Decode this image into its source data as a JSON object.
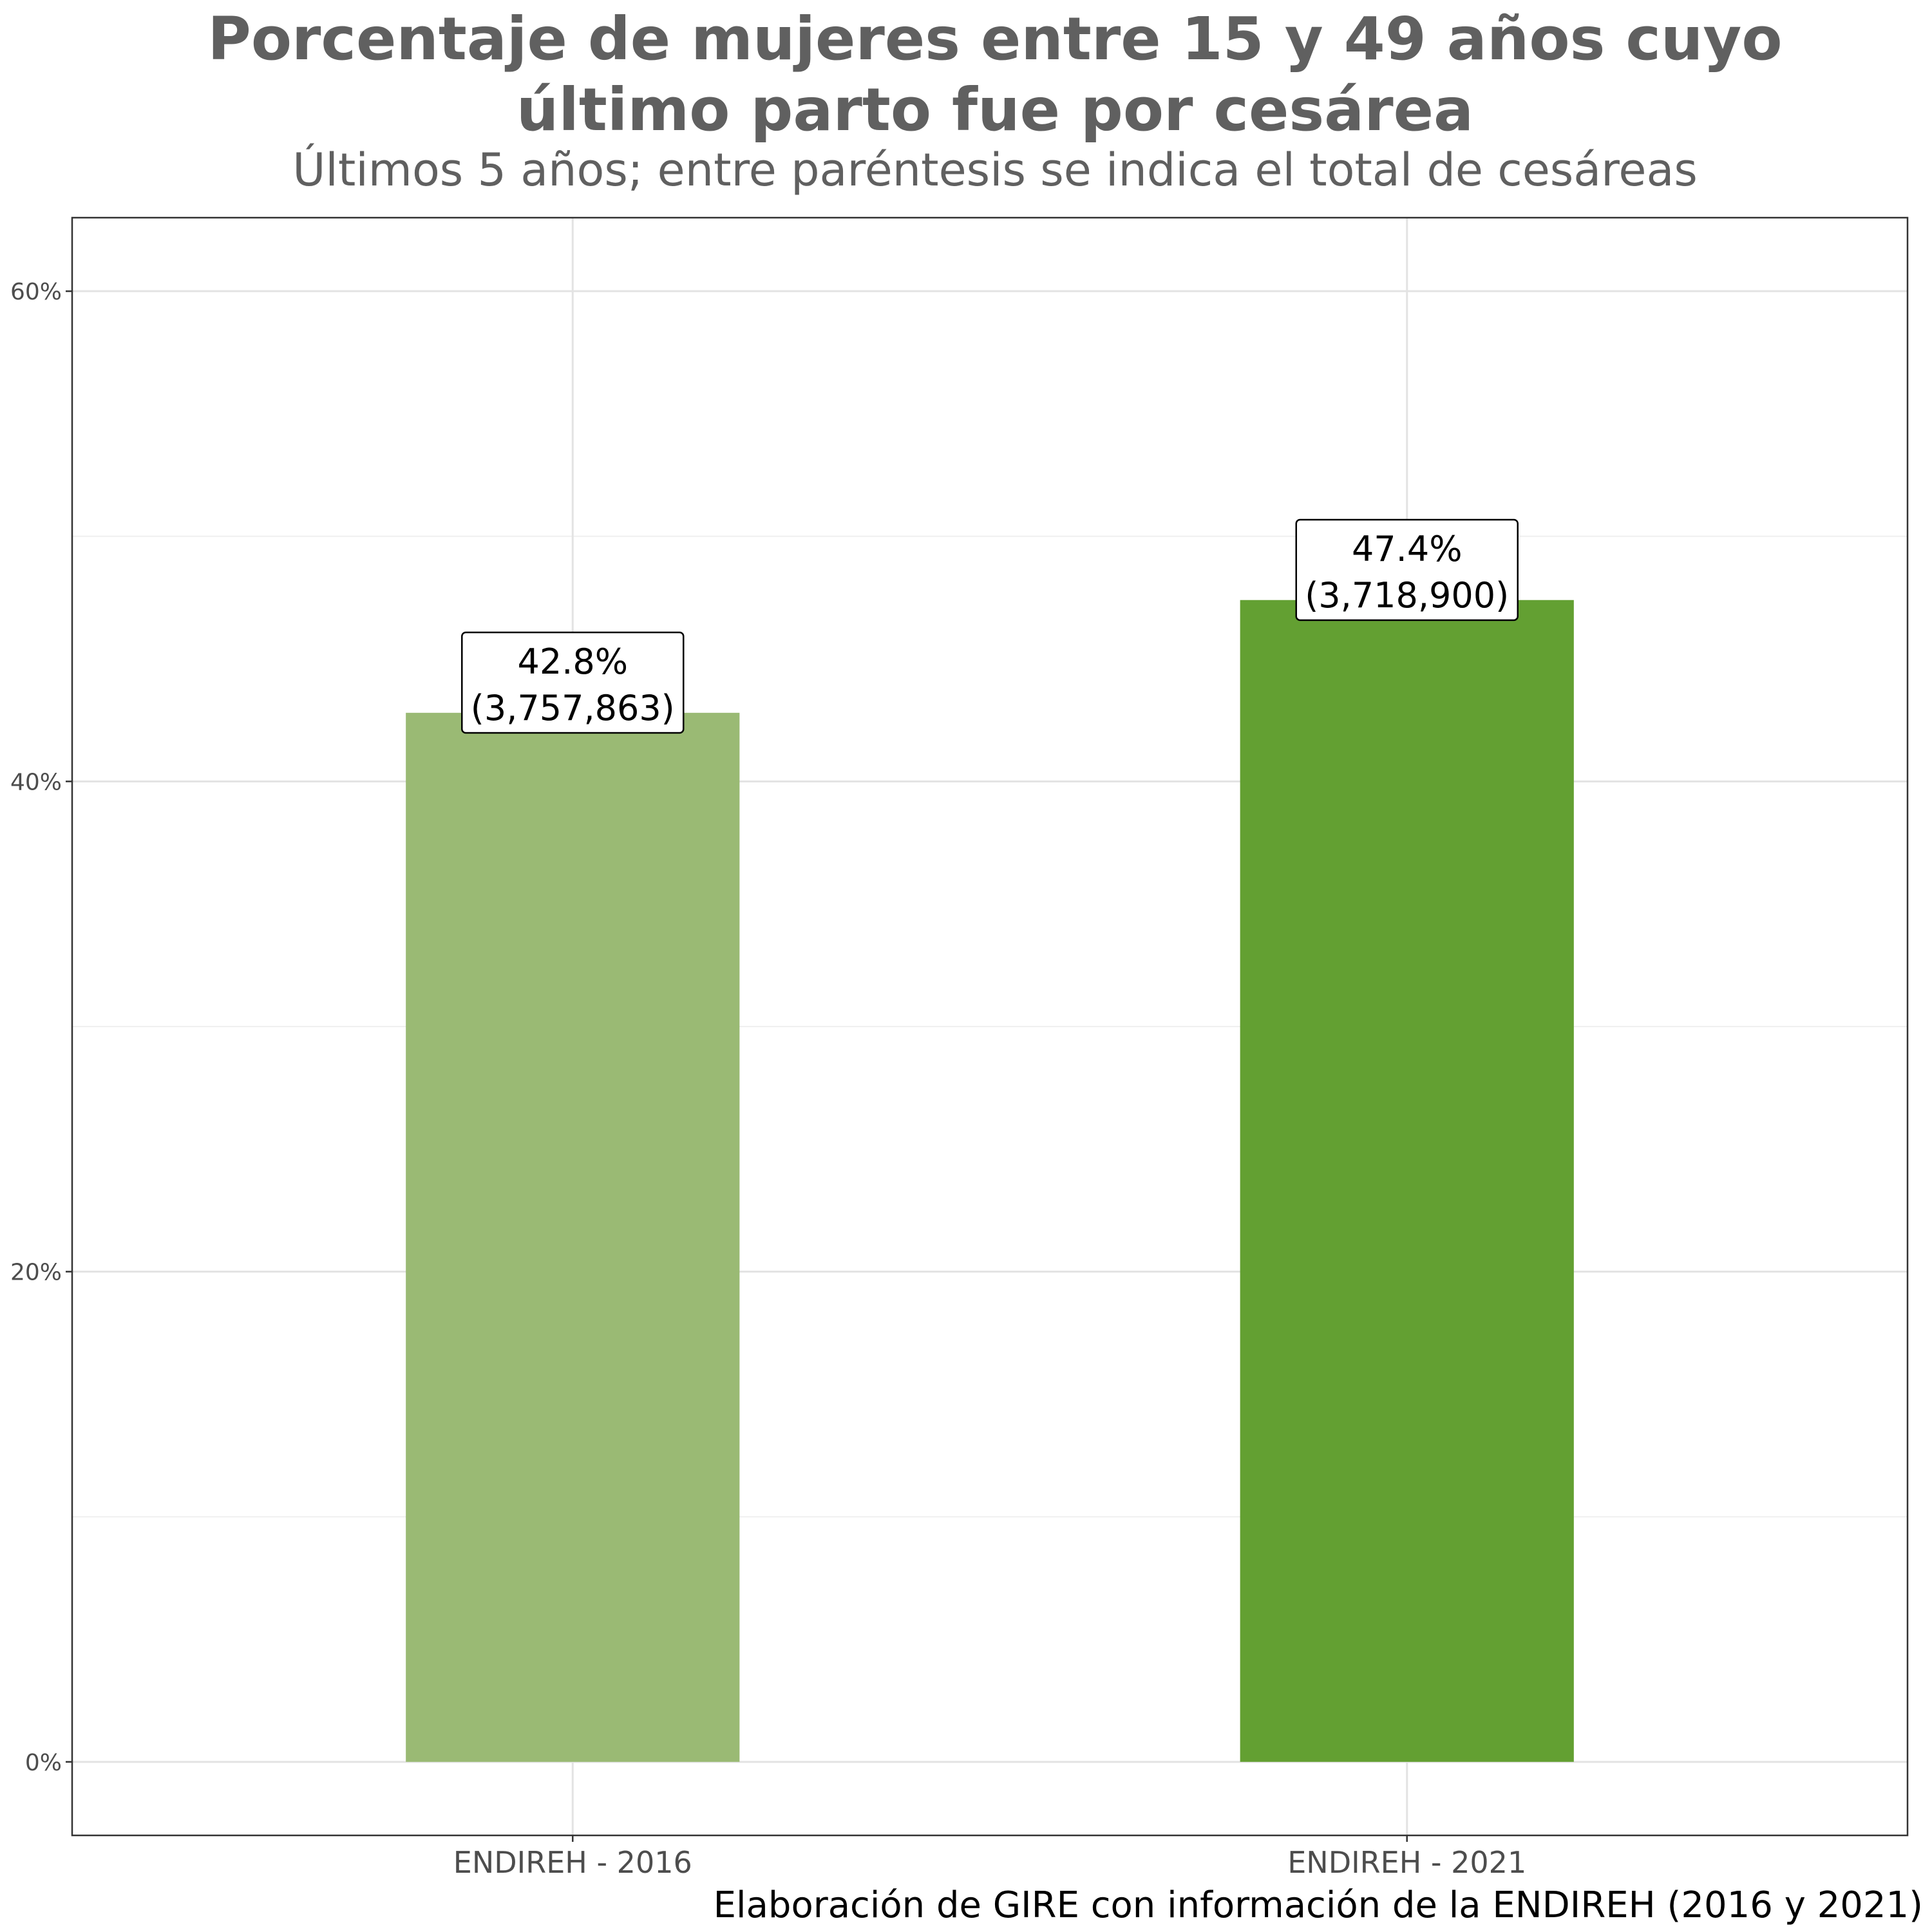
{
  "title_lines": [
    "Porcentaje de mujeres entre 15 y 49 años cuyo",
    "último parto fue por cesárea"
  ],
  "subtitle": "Últimos 5 años; entre paréntesis se indica el total de cesáreas",
  "caption": "Elaboración de GIRE con información de la ENDIREH (2016 y 2021)",
  "chart_data": {
    "type": "bar",
    "categories": [
      "ENDIREH - 2016",
      "ENDIREH - 2021"
    ],
    "values": [
      42.8,
      47.4
    ],
    "value_labels": [
      "42.8%",
      "47.4%"
    ],
    "count_labels": [
      "(3,757,863)",
      "(3,718,900)"
    ],
    "bar_colors": [
      "#9aba74",
      "#63a032"
    ],
    "yticks": [
      0,
      20,
      40,
      60
    ],
    "ytick_labels": [
      "0%",
      "20%",
      "40%",
      "60%"
    ],
    "ylim": [
      -3,
      63
    ],
    "grid": true,
    "legend": "none"
  }
}
